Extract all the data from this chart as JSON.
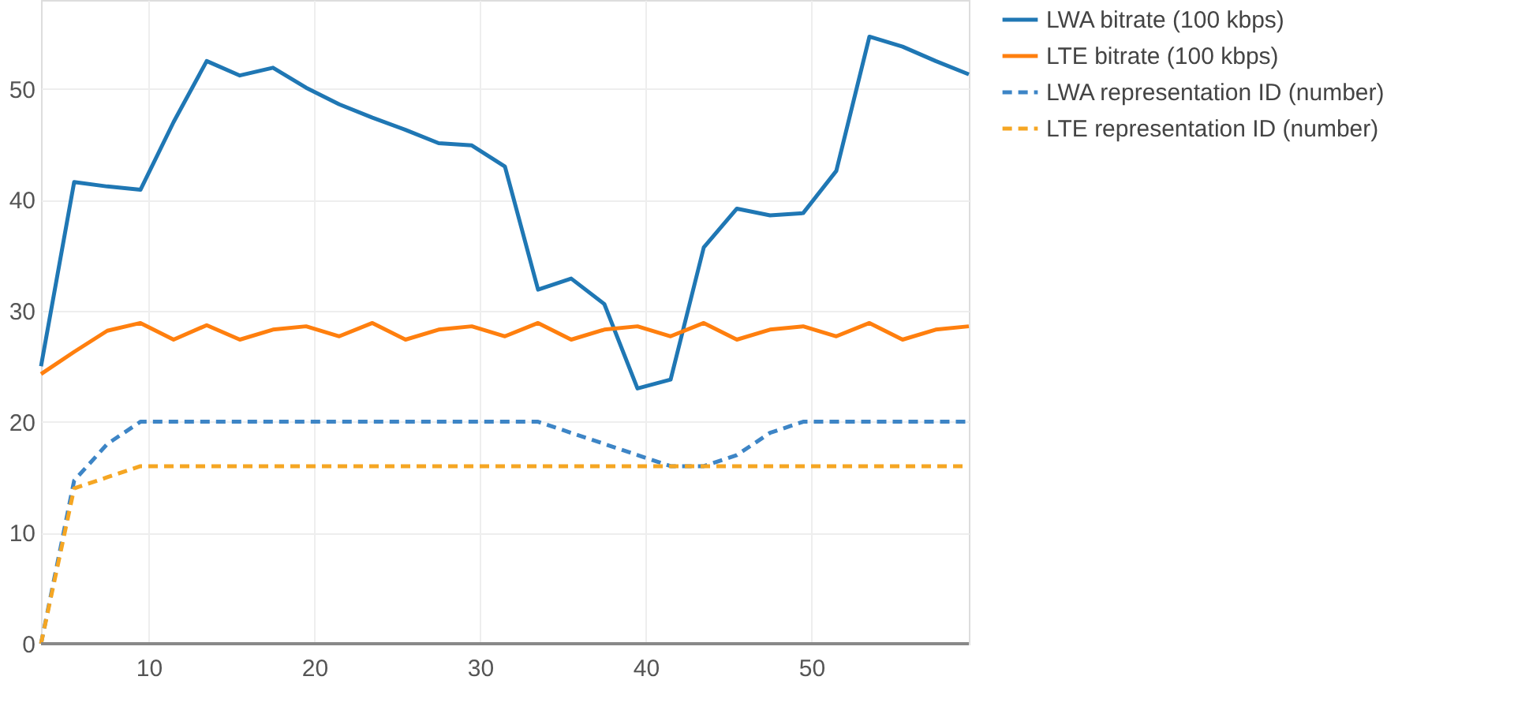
{
  "chart_data": {
    "type": "line",
    "x": [
      3.5,
      5.5,
      7.5,
      9.5,
      11.5,
      13.5,
      15.5,
      17.5,
      19.5,
      21.5,
      23.5,
      25.5,
      27.5,
      29.5,
      31.5,
      33.5,
      35.5,
      37.5,
      39.5,
      41.5,
      43.5,
      45.5,
      47.5,
      49.5,
      51.5,
      53.5,
      55.5,
      57.5,
      59.5
    ],
    "series": [
      {
        "name": "LWA bitrate (100 kbps)",
        "color": "#1f77b4",
        "line_style": "solid",
        "values": [
          25,
          41.6,
          41.2,
          40.9,
          47,
          52.5,
          51.2,
          51.9,
          50.1,
          48.6,
          47.4,
          46.3,
          45.1,
          44.9,
          43,
          31.9,
          32.9,
          30.6,
          23,
          23.8,
          35.7,
          39.2,
          38.6,
          38.8,
          42.6,
          54.7,
          53.8,
          52.5,
          51.3
        ]
      },
      {
        "name": "LTE bitrate (100 kbps)",
        "color": "#ff7f0e",
        "line_style": "solid",
        "values": [
          24.3,
          26.3,
          28.2,
          28.9,
          27.4,
          28.7,
          27.4,
          28.3,
          28.6,
          27.7,
          28.9,
          27.4,
          28.3,
          28.6,
          27.7,
          28.9,
          27.4,
          28.3,
          28.6,
          27.7,
          28.9,
          27.4,
          28.3,
          28.6,
          27.7,
          28.9,
          27.4,
          28.3,
          28.6
        ]
      },
      {
        "name": "LWA representation ID (number)",
        "color": "#3d85c6",
        "line_style": "dashed",
        "values": [
          0,
          14.7,
          18,
          20,
          20,
          20,
          20,
          20,
          20,
          20,
          20,
          20,
          20,
          20,
          20,
          20,
          19,
          18,
          17,
          16,
          16,
          17,
          19,
          20,
          20,
          20,
          20,
          20,
          20
        ]
      },
      {
        "name": "LTE representation ID (number)",
        "color": "#f5a623",
        "line_style": "dashed",
        "values": [
          0,
          14,
          15,
          16,
          16,
          16,
          16,
          16,
          16,
          16,
          16,
          16,
          16,
          16,
          16,
          16,
          16,
          16,
          16,
          16,
          16,
          16,
          16,
          16,
          16,
          16,
          16,
          16,
          16
        ]
      }
    ],
    "xlim": [
      3.5,
      59.5
    ],
    "xticks": [
      10,
      20,
      30,
      40,
      50
    ],
    "ylim": [
      0,
      58
    ],
    "yticks": [
      0,
      10,
      20,
      30,
      40,
      50
    ],
    "grid": true,
    "legend": "top right",
    "marker": "none"
  }
}
